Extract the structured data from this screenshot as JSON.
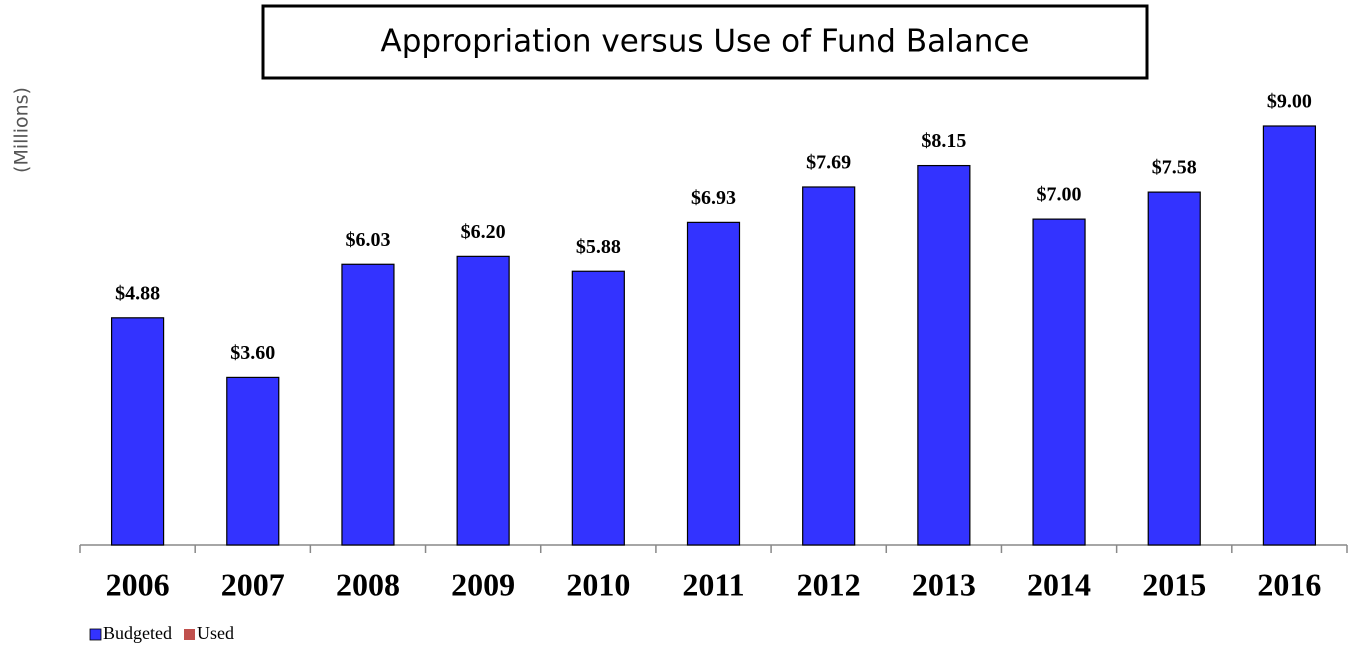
{
  "chart_data": {
    "type": "bar",
    "title": "Appropriation versus Use of Fund Balance",
    "y_label": "(Millions)",
    "categories": [
      "2006",
      "2007",
      "2008",
      "2009",
      "2010",
      "2011",
      "2012",
      "2013",
      "2014",
      "2015",
      "2016"
    ],
    "series": [
      {
        "name": "Budgeted",
        "color": "#3333ff",
        "values": [
          4.88,
          3.6,
          6.03,
          6.2,
          5.88,
          6.93,
          7.69,
          8.15,
          7.0,
          7.58,
          9.0
        ],
        "value_labels": [
          "$4.88",
          "$3.60",
          "$6.03",
          "$6.20",
          "$5.88",
          "$6.93",
          "$7.69",
          "$8.15",
          "$7.00",
          "$7.58",
          "$9.00"
        ]
      },
      {
        "name": "Used",
        "color": "#c0504d",
        "values": [
          null,
          null,
          null,
          null,
          null,
          null,
          null,
          null,
          null,
          null,
          null
        ]
      }
    ],
    "ylim": [
      0,
      9
    ],
    "legend": "bottom-left"
  }
}
